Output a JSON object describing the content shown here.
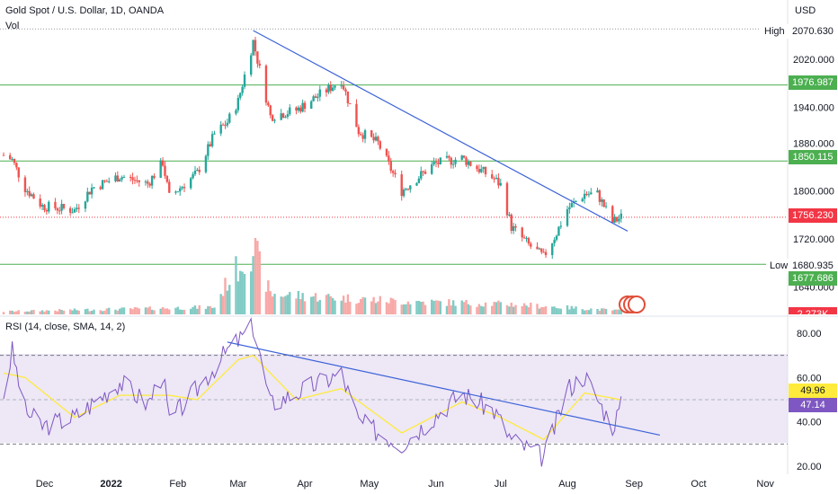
{
  "header": {
    "symbol_title": "Gold Spot / U.S. Dollar, 1D, OANDA",
    "vol_label": "Vol",
    "currency": "USD",
    "rsi_label": "RSI (14, close, SMA, 14, 2)"
  },
  "price_axis": {
    "ticks": [
      "2020.000",
      "1940.000",
      "1880.000",
      "1800.000",
      "1720.000",
      "1640.000"
    ],
    "high_label": "High",
    "high_value": "2070.630",
    "low_label": "Low",
    "low_value": "1680.935",
    "levels": [
      {
        "value": "1976.987",
        "color": "#4caf50"
      },
      {
        "value": "1850.115",
        "color": "#4caf50"
      },
      {
        "value": "1677.686",
        "color": "#4caf50"
      }
    ],
    "last_price": {
      "value": "1756.230",
      "color": "#f23645"
    },
    "volume_tag": "2.273K"
  },
  "rsi_axis": {
    "ticks": [
      "80.00",
      "60.00",
      "40.00",
      "20.00"
    ],
    "sma_value": {
      "value": "49.96",
      "color": "#ffeb3b"
    },
    "rsi_value": {
      "value": "47.14",
      "color": "#7e57c2"
    }
  },
  "time_axis": {
    "labels": [
      "Dec",
      "2022",
      "Feb",
      "Mar",
      "Apr",
      "May",
      "Jun",
      "Jul",
      "Aug",
      "Sep",
      "Oct",
      "Nov"
    ]
  },
  "colors": {
    "up": "#26a69a",
    "down": "#ef5350",
    "vol_up": "#80cbc4",
    "vol_down": "#f7a9a7",
    "trendline": "#3d63d8",
    "rsi_line": "#7e57c2",
    "rsi_sma": "#ffeb3b",
    "rsi_band": "#ede7f6"
  },
  "chart_data": {
    "type": "candlestick",
    "title": "Gold Spot / U.S. Dollar, 1D, OANDA",
    "ylim": [
      1620,
      2080
    ],
    "close_path": [
      {
        "x": "2021-11-12",
        "y": 1860
      },
      {
        "x": "2021-11-16",
        "y": 1852
      },
      {
        "x": "2021-11-22",
        "y": 1805
      },
      {
        "x": "2021-11-30",
        "y": 1775
      },
      {
        "x": "2021-12-15",
        "y": 1768
      },
      {
        "x": "2021-12-23",
        "y": 1805
      },
      {
        "x": "2022-01-05",
        "y": 1825
      },
      {
        "x": "2022-01-18",
        "y": 1812
      },
      {
        "x": "2022-01-25",
        "y": 1848
      },
      {
        "x": "2022-01-28",
        "y": 1790
      },
      {
        "x": "2022-02-10",
        "y": 1830
      },
      {
        "x": "2022-02-18",
        "y": 1895
      },
      {
        "x": "2022-02-24",
        "y": 1915
      },
      {
        "x": "2022-03-01",
        "y": 1950
      },
      {
        "x": "2022-03-08",
        "y": 2050
      },
      {
        "x": "2022-03-16",
        "y": 1925
      },
      {
        "x": "2022-03-28",
        "y": 1935
      },
      {
        "x": "2022-04-18",
        "y": 1985
      },
      {
        "x": "2022-04-26",
        "y": 1900
      },
      {
        "x": "2022-05-05",
        "y": 1880
      },
      {
        "x": "2022-05-16",
        "y": 1800
      },
      {
        "x": "2022-05-31",
        "y": 1845
      },
      {
        "x": "2022-06-13",
        "y": 1855
      },
      {
        "x": "2022-06-28",
        "y": 1820
      },
      {
        "x": "2022-07-01",
        "y": 1810
      },
      {
        "x": "2022-07-06",
        "y": 1740
      },
      {
        "x": "2022-07-14",
        "y": 1710
      },
      {
        "x": "2022-07-21",
        "y": 1690
      },
      {
        "x": "2022-07-27",
        "y": 1730
      },
      {
        "x": "2022-08-01",
        "y": 1770
      },
      {
        "x": "2022-08-09",
        "y": 1795
      },
      {
        "x": "2022-08-15",
        "y": 1795
      },
      {
        "x": "2022-08-22",
        "y": 1748
      },
      {
        "x": "2022-08-26",
        "y": 1756
      }
    ],
    "volume_path": [
      {
        "x": "2021-11-12",
        "y": 0.04
      },
      {
        "x": "2022-02-18",
        "y": 0.1
      },
      {
        "x": "2022-02-24",
        "y": 0.45
      },
      {
        "x": "2022-03-08",
        "y": 0.92
      },
      {
        "x": "2022-03-16",
        "y": 0.28
      },
      {
        "x": "2022-05-16",
        "y": 0.18
      },
      {
        "x": "2022-07-06",
        "y": 0.14
      },
      {
        "x": "2022-08-26",
        "y": 0.05
      }
    ],
    "rsi": {
      "ylim": [
        15,
        85
      ],
      "band": [
        30,
        70
      ],
      "mid": 50,
      "rsi_path": [
        {
          "x": "2021-11-12",
          "y": 52
        },
        {
          "x": "2021-11-16",
          "y": 72
        },
        {
          "x": "2021-11-22",
          "y": 45
        },
        {
          "x": "2021-11-30",
          "y": 38
        },
        {
          "x": "2021-12-15",
          "y": 42
        },
        {
          "x": "2022-01-05",
          "y": 58
        },
        {
          "x": "2022-01-18",
          "y": 48
        },
        {
          "x": "2022-01-25",
          "y": 62
        },
        {
          "x": "2022-01-28",
          "y": 40
        },
        {
          "x": "2022-02-10",
          "y": 55
        },
        {
          "x": "2022-02-24",
          "y": 72
        },
        {
          "x": "2022-03-08",
          "y": 83
        },
        {
          "x": "2022-03-16",
          "y": 48
        },
        {
          "x": "2022-03-28",
          "y": 53
        },
        {
          "x": "2022-04-18",
          "y": 62
        },
        {
          "x": "2022-04-26",
          "y": 40
        },
        {
          "x": "2022-05-16",
          "y": 30
        },
        {
          "x": "2022-06-13",
          "y": 53
        },
        {
          "x": "2022-06-28",
          "y": 45
        },
        {
          "x": "2022-07-06",
          "y": 32
        },
        {
          "x": "2022-07-21",
          "y": 24
        },
        {
          "x": "2022-07-27",
          "y": 40
        },
        {
          "x": "2022-08-01",
          "y": 55
        },
        {
          "x": "2022-08-09",
          "y": 61
        },
        {
          "x": "2022-08-22",
          "y": 38
        },
        {
          "x": "2022-08-26",
          "y": 47.14
        }
      ],
      "sma_path": [
        {
          "x": "2021-11-12",
          "y": 62
        },
        {
          "x": "2021-11-22",
          "y": 60
        },
        {
          "x": "2021-12-15",
          "y": 42
        },
        {
          "x": "2022-01-05",
          "y": 52
        },
        {
          "x": "2022-01-28",
          "y": 52
        },
        {
          "x": "2022-02-10",
          "y": 50
        },
        {
          "x": "2022-03-01",
          "y": 68
        },
        {
          "x": "2022-03-08",
          "y": 70
        },
        {
          "x": "2022-03-28",
          "y": 50
        },
        {
          "x": "2022-04-18",
          "y": 55
        },
        {
          "x": "2022-05-16",
          "y": 35
        },
        {
          "x": "2022-06-13",
          "y": 49
        },
        {
          "x": "2022-07-01",
          "y": 42
        },
        {
          "x": "2022-07-21",
          "y": 32
        },
        {
          "x": "2022-08-09",
          "y": 53
        },
        {
          "x": "2022-08-26",
          "y": 49.96
        }
      ],
      "trendline": [
        {
          "x": "2022-02-24",
          "y": 76
        },
        {
          "x": "2022-09-13",
          "y": 34
        }
      ]
    },
    "price_trendline": [
      {
        "x": "2022-03-08",
        "y": 2068
      },
      {
        "x": "2022-08-29",
        "y": 1733
      }
    ],
    "horizontal_levels": [
      1976.987,
      1850.115,
      1677.686
    ],
    "high_line": 2070.63,
    "last_price_line": 1756.23
  }
}
